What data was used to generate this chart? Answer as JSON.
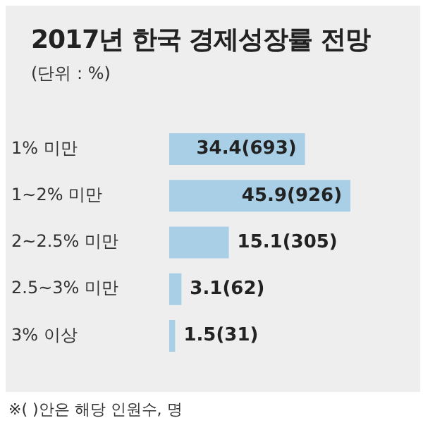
{
  "chart_data": {
    "type": "bar",
    "orientation": "horizontal",
    "title": "2017년 한국 경제성장률 전망",
    "subtitle": "(단위 : %)",
    "categories": [
      "1% 미만",
      "1~2% 미만",
      "2~2.5% 미만",
      "2.5~3% 미만",
      "3% 이상"
    ],
    "values": [
      34.4,
      45.9,
      15.1,
      3.1,
      1.5
    ],
    "value_labels": [
      "34.4(693)",
      "45.9(926)",
      "15.1(305)",
      "3.1(62)",
      "1.5(31)"
    ],
    "color": "#a9cfe6",
    "annotations": [
      "※( )안은 해당 인원수, 명"
    ]
  }
}
